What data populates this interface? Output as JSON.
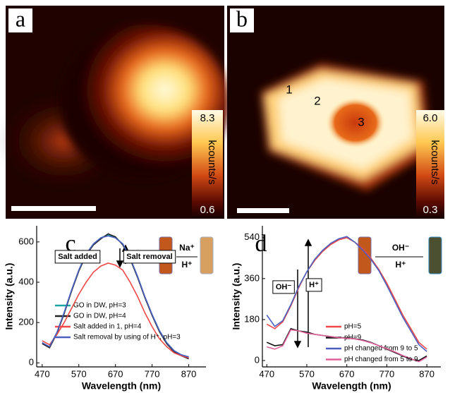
{
  "images": [
    {
      "label": "a",
      "colorbar": {
        "max": "8.3",
        "unit": "kcounts/s",
        "min": "0.6"
      }
    },
    {
      "label": "b",
      "points": [
        "1",
        "2",
        "3"
      ],
      "colorbar": {
        "max": "6.0",
        "unit": "kcounts/s",
        "min": "0.3"
      }
    }
  ],
  "chart_data": [
    {
      "type": "line",
      "panel_label": "c",
      "x_label": "Wavelength (nm)",
      "y_label": "Intensity (a.u.)",
      "x": [
        470,
        490,
        510,
        530,
        550,
        570,
        590,
        610,
        630,
        650,
        670,
        690,
        710,
        730,
        750,
        770,
        790,
        810,
        830,
        850,
        870
      ],
      "xlim": [
        455,
        917
      ],
      "xticks": [
        470,
        570,
        670,
        770,
        870
      ],
      "ylim": [
        -20,
        680
      ],
      "yticks": [
        0,
        200,
        400,
        600
      ],
      "annotations": [
        "Salt added",
        "Salt removal",
        "Na⁺",
        "H⁺"
      ],
      "series": [
        {
          "name": "GO in DW, pH=3",
          "color": "#1aa6a6",
          "values": [
            100,
            80,
            150,
            250,
            360,
            460,
            540,
            590,
            620,
            635,
            620,
            590,
            520,
            430,
            330,
            240,
            160,
            100,
            60,
            40,
            25
          ]
        },
        {
          "name": "GO in DW, pH=4",
          "color": "#222222",
          "values": [
            95,
            75,
            145,
            245,
            355,
            455,
            535,
            585,
            615,
            640,
            625,
            585,
            515,
            425,
            325,
            235,
            155,
            95,
            55,
            35,
            20
          ]
        },
        {
          "name": "Salt added in 1, pH=4",
          "color": "#f04848",
          "values": [
            110,
            90,
            140,
            200,
            270,
            340,
            400,
            450,
            480,
            495,
            485,
            460,
            400,
            330,
            250,
            180,
            120,
            80,
            50,
            35,
            25
          ]
        },
        {
          "name": "Salt removal by using of H⁺, pH=3",
          "color": "#4a5fc0",
          "values": [
            100,
            80,
            150,
            250,
            360,
            460,
            540,
            590,
            620,
            630,
            620,
            590,
            520,
            430,
            330,
            240,
            160,
            100,
            60,
            40,
            30
          ]
        }
      ]
    },
    {
      "type": "line",
      "panel_label": "d",
      "x_label": "Wavelength (nm)",
      "y_label": "Intensity (a.u.)",
      "x": [
        470,
        490,
        510,
        530,
        550,
        570,
        590,
        610,
        630,
        650,
        670,
        690,
        710,
        730,
        750,
        770,
        790,
        810,
        830,
        850,
        870
      ],
      "xlim": [
        459,
        905
      ],
      "xticks": [
        470,
        570,
        670,
        770,
        870
      ],
      "ylim": [
        -28,
        592
      ],
      "yticks": [
        0,
        180,
        360,
        540
      ],
      "annotations": [
        "OH⁻",
        "H⁺",
        "OH⁻",
        "H⁺"
      ],
      "series": [
        {
          "name": "pH=5",
          "color": "#f04848",
          "values": [
            160,
            140,
            170,
            240,
            320,
            390,
            440,
            480,
            510,
            530,
            540,
            520,
            490,
            450,
            400,
            340,
            270,
            200,
            140,
            80,
            50
          ]
        },
        {
          "name": "pH=9",
          "color": "#111111",
          "values": [
            80,
            65,
            70,
            140,
            130,
            125,
            115,
            110,
            105,
            100,
            100,
            95,
            90,
            80,
            65,
            50,
            35,
            20,
            5,
            0,
            20
          ]
        },
        {
          "name": "pH changed from 9 to 5",
          "color": "#4a5fc0",
          "values": [
            200,
            150,
            175,
            245,
            325,
            390,
            445,
            485,
            515,
            535,
            545,
            520,
            485,
            445,
            395,
            330,
            260,
            190,
            130,
            70,
            40
          ]
        },
        {
          "name": "pH changed from 5 to 9",
          "color": "#e0609a",
          "values": [
            60,
            50,
            65,
            135,
            130,
            120,
            115,
            110,
            105,
            100,
            98,
            95,
            88,
            78,
            65,
            52,
            38,
            22,
            8,
            -5,
            15
          ]
        }
      ]
    }
  ]
}
